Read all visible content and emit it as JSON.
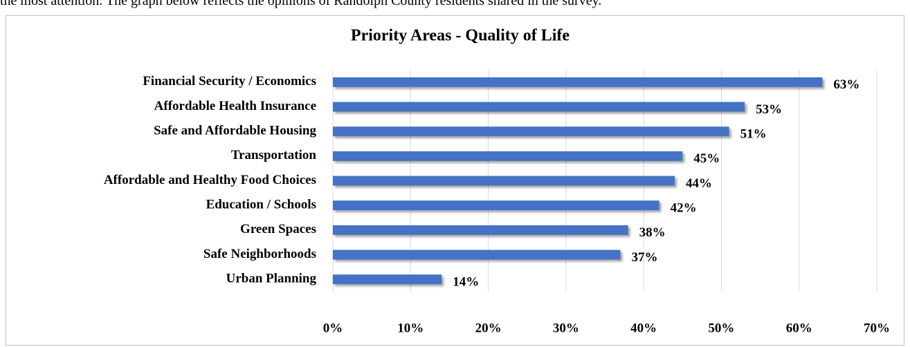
{
  "intro": "the most attention. The graph below reflects the opinions of Randolph County residents shared in the survey.",
  "chart_data": {
    "type": "bar",
    "orientation": "horizontal",
    "title": "Priority Areas - Quality of Life",
    "categories": [
      "Financial Security / Economics",
      "Affordable Health Insurance",
      "Safe and Affordable Housing",
      "Transportation",
      "Affordable and Healthy Food Choices",
      "Education / Schools",
      "Green Spaces",
      "Safe Neighborhoods",
      "Urban Planning"
    ],
    "values": [
      63,
      53,
      51,
      45,
      44,
      42,
      38,
      37,
      14
    ],
    "value_labels": [
      "63%",
      "53%",
      "51%",
      "45%",
      "44%",
      "42%",
      "38%",
      "37%",
      "14%"
    ],
    "color": "#4472c4",
    "xlim": [
      0,
      70
    ],
    "xticks": [
      {
        "value": 0,
        "label": "0%"
      },
      {
        "value": 10,
        "label": "10%"
      },
      {
        "value": 20,
        "label": "20%"
      },
      {
        "value": 30,
        "label": "30%"
      },
      {
        "value": 40,
        "label": "40%"
      },
      {
        "value": 50,
        "label": "50%"
      },
      {
        "value": 60,
        "label": "60%"
      },
      {
        "value": 70,
        "label": "70%"
      }
    ],
    "grid": true
  }
}
